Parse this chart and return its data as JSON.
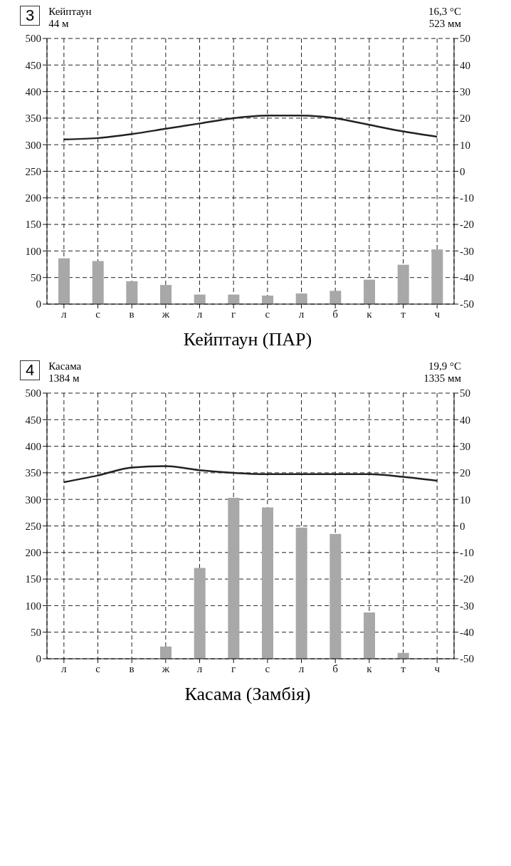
{
  "chart_data": [
    {
      "type": "bar",
      "title": "Кейптаун (ПАР)",
      "annotations": [
        "3",
        "Кейптаун",
        "44 м",
        "16,3 °C",
        "523 мм"
      ],
      "categories": [
        "л",
        "с",
        "в",
        "ж",
        "л",
        "г",
        "с",
        "л",
        "б",
        "к",
        "т",
        "ч"
      ],
      "series": [
        {
          "color": "#a8a8a8",
          "values": [
            86,
            81,
            43,
            36,
            18,
            18,
            16,
            20,
            25,
            46,
            74,
            103
          ]
        },
        {
          "type": "line",
          "axis": "y2",
          "color": "#222222",
          "values": [
            12,
            12.5,
            14,
            16,
            18,
            20,
            21,
            21,
            20,
            17.5,
            15,
            13
          ]
        }
      ],
      "ylim": [
        0,
        500
      ],
      "yticks": [
        0,
        50,
        100,
        150,
        200,
        250,
        300,
        350,
        400,
        450,
        500
      ],
      "y2lim": [
        -50,
        50
      ],
      "y2ticks": [
        -50,
        -40,
        -30,
        -20,
        -10,
        0,
        10,
        20,
        30,
        40,
        50
      ],
      "grid": true,
      "line_style": "solid"
    },
    {
      "type": "bar",
      "title": "Касама (Замбія)",
      "annotations": [
        "4",
        "Касама",
        "1384 м",
        "19,9 °C",
        "1335 мм"
      ],
      "categories": [
        "л",
        "с",
        "в",
        "ж",
        "л",
        "г",
        "с",
        "л",
        "б",
        "к",
        "т",
        "ч"
      ],
      "series": [
        {
          "color": "#a8a8a8",
          "values": [
            0,
            0,
            0,
            23,
            171,
            303,
            285,
            247,
            235,
            87,
            11,
            0
          ]
        },
        {
          "type": "line",
          "axis": "y2",
          "color": "#222222",
          "values": [
            16.5,
            19,
            22,
            22.5,
            21,
            20,
            19.5,
            19.5,
            19.5,
            19.5,
            18.5,
            17
          ]
        }
      ],
      "ylim": [
        0,
        500
      ],
      "yticks": [
        0,
        50,
        100,
        150,
        200,
        250,
        300,
        350,
        400,
        450,
        500
      ],
      "y2lim": [
        -50,
        50
      ],
      "y2ticks": [
        -50,
        -40,
        -30,
        -20,
        -10,
        0,
        10,
        20,
        30,
        40,
        50
      ],
      "grid": true,
      "line_style": "solid"
    }
  ]
}
